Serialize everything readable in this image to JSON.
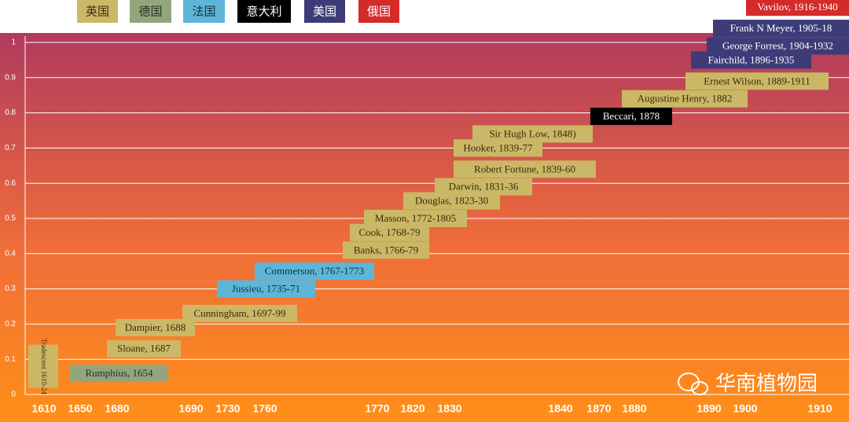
{
  "chart_data": {
    "type": "timeline",
    "legend": [
      {
        "name": "英国",
        "color": "#cbb866",
        "text_color": "#3a2a10"
      },
      {
        "name": "德国",
        "color": "#93a57d",
        "text_color": "#2a3020"
      },
      {
        "name": "法国",
        "color": "#5db6d8",
        "text_color": "#10303a"
      },
      {
        "name": "意大利",
        "color": "#000000",
        "text_color": "#ffffff"
      },
      {
        "name": "美国",
        "color": "#3d3c78",
        "text_color": "#ffffff"
      },
      {
        "name": "俄国",
        "color": "#d42a2a",
        "text_color": "#ffffff"
      }
    ],
    "items": [
      {
        "label": "Tradescent 1610-24",
        "country": 0,
        "y": 0.08
      },
      {
        "label": "Rumphius, 1654",
        "country": 1,
        "y": 0.06
      },
      {
        "label": "Sloane, 1687",
        "country": 0,
        "y": 0.13
      },
      {
        "label": "Dampier, 1688",
        "country": 0,
        "y": 0.19
      },
      {
        "label": "Cunningham, 1697-99",
        "country": 0,
        "y": 0.23
      },
      {
        "label": "Jussieu, 1735-71",
        "country": 2,
        "y": 0.3
      },
      {
        "label": "Commerson, 1767-1773",
        "country": 2,
        "y": 0.35
      },
      {
        "label": "Banks, 1766-79",
        "country": 0,
        "y": 0.41
      },
      {
        "label": "Cook, 1768-79",
        "country": 0,
        "y": 0.46
      },
      {
        "label": "Masson, 1772-1805",
        "country": 0,
        "y": 0.5
      },
      {
        "label": "Douglas, 1823-30",
        "country": 0,
        "y": 0.55
      },
      {
        "label": "Darwin,  1831-36",
        "country": 0,
        "y": 0.59
      },
      {
        "label": "Robert Fortune,  1839-60",
        "country": 0,
        "y": 0.64
      },
      {
        "label": "Hooker,  1839-77",
        "country": 0,
        "y": 0.7
      },
      {
        "label": "Sir Hugh Low,  1848)",
        "country": 0,
        "y": 0.74
      },
      {
        "label": "Beccari, 1878",
        "country": 3,
        "y": 0.79
      },
      {
        "label": "Augustine Henry, 1882",
        "country": 0,
        "y": 0.84
      },
      {
        "label": "Ernest Wilson, 1889-1911",
        "country": 0,
        "y": 0.89
      },
      {
        "label": "Fairchild, 1896-1935",
        "country": 4,
        "y": 0.95
      },
      {
        "label": "George Forrest, 1904-1932",
        "country": 4,
        "y": 0.99
      },
      {
        "label": "Frank N Meyer,  1905-18",
        "country": 4,
        "y": 1.04
      },
      {
        "label": "Vavilov, 1916-1940",
        "country": 5,
        "y": 1.1
      }
    ],
    "xlabels": [
      "1610",
      "1650",
      "1680",
      "1690",
      "1730",
      "1760",
      "1770",
      "1820",
      "1830",
      "1840",
      "1870",
      "1880",
      "1890",
      "1900",
      "1910"
    ],
    "ylim": [
      0,
      1
    ],
    "yticks": [
      0,
      0.1,
      0.2,
      0.3,
      0.4,
      0.5,
      0.6,
      0.7,
      0.8,
      0.9,
      1
    ],
    "grid": true,
    "watermark": "华南植物园"
  }
}
